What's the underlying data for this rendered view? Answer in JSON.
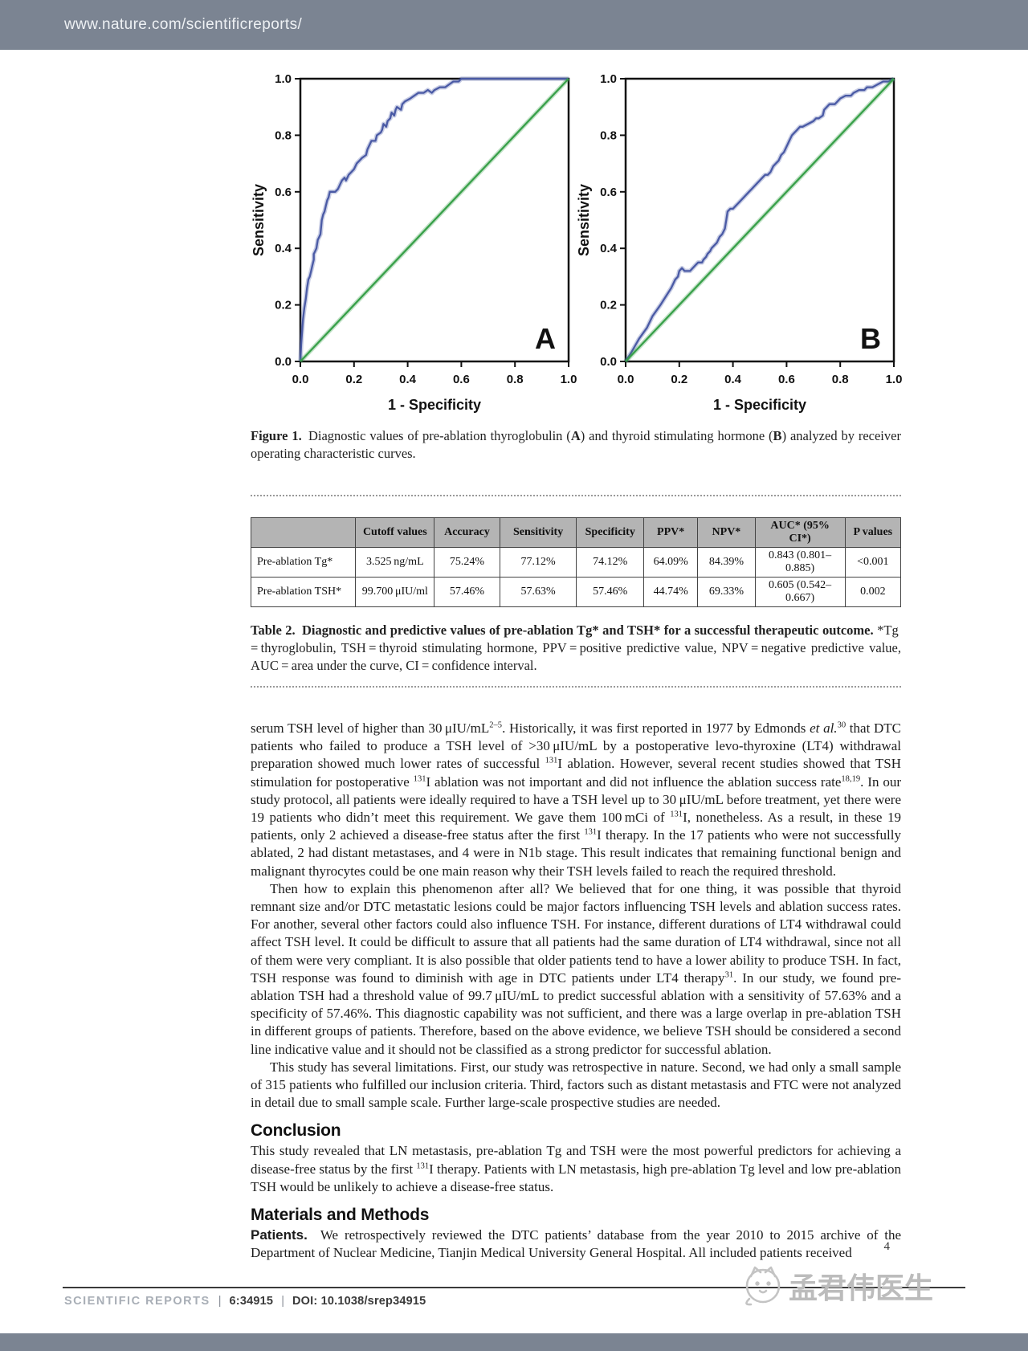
{
  "page": {
    "header": {
      "url": "www.nature.com/scientificreports/"
    },
    "footer": {
      "journal": "SCIENTIFIC REPORTS",
      "separator": "|",
      "issue": "6:34915",
      "doi": "DOI: 10.1038/srep34915",
      "page_number": "4",
      "watermark": "孟君伟医生"
    }
  },
  "chart_data": [
    {
      "type": "line",
      "panel_label": "A",
      "title": "",
      "xlabel": "1 - Specificity",
      "ylabel": "Sensitivity",
      "xlim": [
        0,
        1
      ],
      "ylim": [
        0,
        1
      ],
      "xticks": [
        "0.0",
        "0.2",
        "0.4",
        "0.6",
        "0.8",
        "1.0"
      ],
      "yticks": [
        "0.0",
        "0.2",
        "0.4",
        "0.6",
        "0.8",
        "1.0"
      ],
      "grid": false,
      "legend": "none",
      "series": [
        {
          "name": "ROC curve of pre-ablation Tg",
          "color": "#4a5aa5",
          "points": [
            [
              0,
              0
            ],
            [
              0.003,
              0.06
            ],
            [
              0.006,
              0.1
            ],
            [
              0.01,
              0.15
            ],
            [
              0.015,
              0.19
            ],
            [
              0.02,
              0.22
            ],
            [
              0.025,
              0.26
            ],
            [
              0.03,
              0.29
            ],
            [
              0.035,
              0.3
            ],
            [
              0.04,
              0.32
            ],
            [
              0.045,
              0.34
            ],
            [
              0.05,
              0.36
            ],
            [
              0.05,
              0.38
            ],
            [
              0.055,
              0.39
            ],
            [
              0.06,
              0.4
            ],
            [
              0.065,
              0.43
            ],
            [
              0.07,
              0.44
            ],
            [
              0.075,
              0.45
            ],
            [
              0.08,
              0.5
            ],
            [
              0.085,
              0.52
            ],
            [
              0.09,
              0.53
            ],
            [
              0.095,
              0.55
            ],
            [
              0.1,
              0.57
            ],
            [
              0.105,
              0.58
            ],
            [
              0.11,
              0.6
            ],
            [
              0.13,
              0.6
            ],
            [
              0.14,
              0.61
            ],
            [
              0.15,
              0.63
            ],
            [
              0.155,
              0.64
            ],
            [
              0.165,
              0.65
            ],
            [
              0.17,
              0.64
            ],
            [
              0.18,
              0.66
            ],
            [
              0.19,
              0.67
            ],
            [
              0.2,
              0.68
            ],
            [
              0.21,
              0.7
            ],
            [
              0.22,
              0.71
            ],
            [
              0.23,
              0.72
            ],
            [
              0.245,
              0.73
            ],
            [
              0.25,
              0.75
            ],
            [
              0.26,
              0.77
            ],
            [
              0.265,
              0.78
            ],
            [
              0.28,
              0.78
            ],
            [
              0.285,
              0.8
            ],
            [
              0.3,
              0.81
            ],
            [
              0.305,
              0.82
            ],
            [
              0.31,
              0.84
            ],
            [
              0.32,
              0.83
            ],
            [
              0.325,
              0.85
            ],
            [
              0.335,
              0.86
            ],
            [
              0.34,
              0.88
            ],
            [
              0.35,
              0.87
            ],
            [
              0.355,
              0.89
            ],
            [
              0.36,
              0.9
            ],
            [
              0.375,
              0.89
            ],
            [
              0.38,
              0.91
            ],
            [
              0.39,
              0.92
            ],
            [
              0.41,
              0.93
            ],
            [
              0.425,
              0.94
            ],
            [
              0.44,
              0.95
            ],
            [
              0.46,
              0.95
            ],
            [
              0.475,
              0.96
            ],
            [
              0.49,
              0.95
            ],
            [
              0.5,
              0.96
            ],
            [
              0.52,
              0.97
            ],
            [
              0.54,
              0.97
            ],
            [
              0.555,
              0.98
            ],
            [
              0.57,
              0.99
            ],
            [
              0.59,
              0.99
            ],
            [
              0.6,
              1.0
            ],
            [
              1.0,
              1.0
            ]
          ]
        },
        {
          "name": "reference diagonal",
          "color": "#38a049",
          "points": [
            [
              0,
              0
            ],
            [
              1,
              1
            ]
          ]
        }
      ]
    },
    {
      "type": "line",
      "panel_label": "B",
      "title": "",
      "xlabel": "1 - Specificity",
      "ylabel": "Sensitivity",
      "xlim": [
        0,
        1
      ],
      "ylim": [
        0,
        1
      ],
      "xticks": [
        "0.0",
        "0.2",
        "0.4",
        "0.6",
        "0.8",
        "1.0"
      ],
      "yticks": [
        "0.0",
        "0.2",
        "0.4",
        "0.6",
        "0.8",
        "1.0"
      ],
      "grid": false,
      "legend": "none",
      "series": [
        {
          "name": "ROC curve of pre-ablation TSH",
          "color": "#4a5aa5",
          "points": [
            [
              0,
              0
            ],
            [
              0.02,
              0.03
            ],
            [
              0.05,
              0.08
            ],
            [
              0.08,
              0.12
            ],
            [
              0.1,
              0.16
            ],
            [
              0.13,
              0.2
            ],
            [
              0.15,
              0.23
            ],
            [
              0.17,
              0.26
            ],
            [
              0.185,
              0.29
            ],
            [
              0.195,
              0.3
            ],
            [
              0.2,
              0.32
            ],
            [
              0.21,
              0.33
            ],
            [
              0.22,
              0.32
            ],
            [
              0.24,
              0.32
            ],
            [
              0.25,
              0.33
            ],
            [
              0.26,
              0.34
            ],
            [
              0.27,
              0.35
            ],
            [
              0.285,
              0.35
            ],
            [
              0.29,
              0.36
            ],
            [
              0.3,
              0.37
            ],
            [
              0.305,
              0.38
            ],
            [
              0.315,
              0.39
            ],
            [
              0.32,
              0.4
            ],
            [
              0.33,
              0.41
            ],
            [
              0.34,
              0.42
            ],
            [
              0.35,
              0.44
            ],
            [
              0.36,
              0.45
            ],
            [
              0.365,
              0.46
            ],
            [
              0.37,
              0.47
            ],
            [
              0.375,
              0.5
            ],
            [
              0.38,
              0.53
            ],
            [
              0.39,
              0.54
            ],
            [
              0.4,
              0.54
            ],
            [
              0.41,
              0.55
            ],
            [
              0.42,
              0.56
            ],
            [
              0.43,
              0.57
            ],
            [
              0.44,
              0.58
            ],
            [
              0.45,
              0.59
            ],
            [
              0.46,
              0.6
            ],
            [
              0.47,
              0.61
            ],
            [
              0.48,
              0.62
            ],
            [
              0.49,
              0.63
            ],
            [
              0.5,
              0.64
            ],
            [
              0.51,
              0.65
            ],
            [
              0.52,
              0.66
            ],
            [
              0.53,
              0.66
            ],
            [
              0.54,
              0.67
            ],
            [
              0.55,
              0.69
            ],
            [
              0.56,
              0.7
            ],
            [
              0.57,
              0.71
            ],
            [
              0.58,
              0.73
            ],
            [
              0.59,
              0.74
            ],
            [
              0.6,
              0.76
            ],
            [
              0.61,
              0.78
            ],
            [
              0.62,
              0.8
            ],
            [
              0.63,
              0.81
            ],
            [
              0.64,
              0.82
            ],
            [
              0.65,
              0.83
            ],
            [
              0.66,
              0.83
            ],
            [
              0.68,
              0.84
            ],
            [
              0.7,
              0.85
            ],
            [
              0.71,
              0.86
            ],
            [
              0.72,
              0.86
            ],
            [
              0.735,
              0.87
            ],
            [
              0.74,
              0.89
            ],
            [
              0.75,
              0.9
            ],
            [
              0.76,
              0.91
            ],
            [
              0.78,
              0.91
            ],
            [
              0.79,
              0.92
            ],
            [
              0.8,
              0.93
            ],
            [
              0.82,
              0.94
            ],
            [
              0.84,
              0.94
            ],
            [
              0.85,
              0.95
            ],
            [
              0.87,
              0.96
            ],
            [
              0.89,
              0.96
            ],
            [
              0.9,
              0.97
            ],
            [
              0.92,
              0.97
            ],
            [
              0.94,
              0.98
            ],
            [
              0.96,
              0.99
            ],
            [
              0.98,
              0.99
            ],
            [
              1.0,
              1.0
            ]
          ]
        },
        {
          "name": "reference diagonal",
          "color": "#38a049",
          "points": [
            [
              0,
              0
            ],
            [
              1,
              1
            ]
          ]
        }
      ]
    }
  ],
  "figure": {
    "caption": [
      {
        "t": "Figure 1.",
        "b": 1
      },
      {
        "t": " Diagnostic values of pre-ablation thyroglobulin ("
      },
      {
        "t": "A",
        "b": 1
      },
      {
        "t": ") and thyroid stimulating hormone ("
      },
      {
        "t": "B",
        "b": 1
      },
      {
        "t": ") analyzed by receiver operating characteristic curves."
      }
    ]
  },
  "table": {
    "headers": [
      "",
      "Cutoff values",
      "Accuracy",
      "Sensitivity",
      "Specificity",
      "PPV*",
      "NPV*",
      "AUC* (95% CI*)",
      "P values"
    ],
    "rows": [
      [
        "Pre-ablation Tg*",
        "3.525 ng/mL",
        "75.24%",
        "77.12%",
        "74.12%",
        "64.09%",
        "84.39%",
        "0.843 (0.801–0.885)",
        "<0.001"
      ],
      [
        "Pre-ablation TSH*",
        "99.700 μIU/ml",
        "57.46%",
        "57.63%",
        "57.46%",
        "44.74%",
        "69.33%",
        "0.605 (0.542–0.667)",
        "0.002"
      ]
    ],
    "caption": [
      {
        "t": "Table 2.",
        "b": 1
      },
      {
        "t": " Diagnostic and predictive values of pre-ablation Tg* and TSH* for a successful therapeutic outcome.",
        "b": 1
      },
      {
        "t": " *Tg = thyroglobulin, TSH = thyroid stimulating hormone, PPV = positive predictive value, NPV = negative predictive value, AUC = area under the curve, CI = confidence interval."
      }
    ]
  },
  "article": {
    "paragraphs": [
      {
        "indent": false,
        "segments": [
          {
            "t": "serum TSH level of higher than 30 μIU/mL"
          },
          {
            "t": "2–5",
            "sup": 1
          },
          {
            "t": ". Historically, it was first reported in 1977 by Edmonds "
          },
          {
            "t": "et al.",
            "i": 1
          },
          {
            "t": "30",
            "sup": 1
          },
          {
            "t": " that DTC patients who failed to produce a TSH level of >30 μIU/mL by a postoperative levo-thyroxine (LT4) withdrawal preparation showed much lower rates of successful "
          },
          {
            "t": "131",
            "sup": 1
          },
          {
            "t": "I ablation. However, several recent studies showed that TSH stimulation for postoperative "
          },
          {
            "t": "131",
            "sup": 1
          },
          {
            "t": "I ablation was not important and did not influence the ablation success rate"
          },
          {
            "t": "18,19",
            "sup": 1
          },
          {
            "t": ". In our study protocol, all patients were ideally required to have a TSH level up to 30 μIU/mL before treatment, yet there were 19 patients who didn’t meet this requirement. We gave them 100 mCi of "
          },
          {
            "t": "131",
            "sup": 1
          },
          {
            "t": "I, nonetheless. As a result, in these 19 patients, only 2 achieved a disease-free status after the first "
          },
          {
            "t": "131",
            "sup": 1
          },
          {
            "t": "I therapy. In the 17 patients who were not successfully ablated, 2 had distant metastases, and 4 were in N1b stage. This result indicates that remaining functional benign and malignant thyrocytes could be one main reason why their TSH levels failed to reach the required threshold."
          }
        ]
      },
      {
        "indent": true,
        "segments": [
          {
            "t": "Then how to explain this phenomenon after all? We believed that for one thing, it was possible that thyroid remnant size and/or DTC metastatic lesions could be major factors influencing TSH levels and ablation success rates. For another, several other factors could also influence TSH. For instance, different durations of LT4 withdrawal could affect TSH level. It could be difficult to assure that all patients had the same duration of LT4 withdrawal, since not all of them were very compliant. It is also possible that older patients tend to have a lower ability to produce TSH. In fact, TSH response was found to diminish with age in DTC patients under LT4 therapy"
          },
          {
            "t": "31",
            "sup": 1
          },
          {
            "t": ". In our study, we found pre-ablation TSH had a threshold value of 99.7 μIU/mL to predict successful ablation with a sensitivity of 57.63% and a specificity of 57.46%. This diagnostic capability was not sufficient, and there was a large overlap in pre-ablation TSH in different groups of patients. Therefore, based on the above evidence, we believe TSH should be considered a second line indicative value and it should not be classified as a strong predictor for successful ablation."
          }
        ]
      },
      {
        "indent": true,
        "segments": [
          {
            "t": "This study has several limitations. First, our study was retrospective in nature. Second, we had only a small sample of 315 patients who fulfilled our inclusion criteria. Third, factors such as distant metastasis and FTC were not analyzed in detail due to small sample scale. Further large-scale prospective studies are needed."
          }
        ]
      }
    ],
    "sections": [
      {
        "heading": "Conclusion",
        "paragraphs": [
          {
            "indent": false,
            "segments": [
              {
                "t": "This study revealed that LN metastasis, pre-ablation Tg and TSH were the most powerful predictors for achieving a disease-free status by the first "
              },
              {
                "t": "131",
                "sup": 1
              },
              {
                "t": "I therapy. Patients with LN metastasis, high pre-ablation Tg level and low pre-ablation TSH would be unlikely to achieve a disease-free status."
              }
            ]
          }
        ]
      },
      {
        "heading": "Materials and Methods",
        "paragraphs": [
          {
            "indent": false,
            "segments": [
              {
                "t": "Patients.",
                "lead": 1
              },
              {
                "t": "We retrospectively reviewed the DTC patients’ database from the year 2010 to 2015 archive of the Department of Nuclear Medicine, Tianjin Medical University General Hospital. All included patients received"
              }
            ]
          }
        ]
      }
    ]
  }
}
